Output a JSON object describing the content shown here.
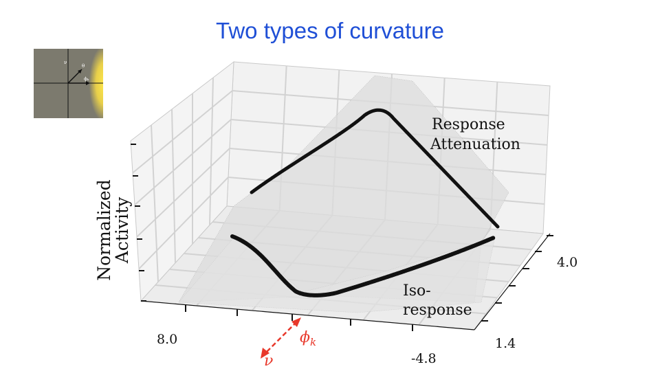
{
  "slide": {
    "title": "Two types of curvature"
  },
  "inset": {
    "label_v": "ν",
    "label_theta": "θ",
    "label_phi": "ϕₖ"
  },
  "plot": {
    "zlabel_line1": "Normalized",
    "zlabel_line2": "Activity",
    "annotation_top_line1": "Response",
    "annotation_top_line2": "Attenuation",
    "annotation_bottom_line1": "Iso-",
    "annotation_bottom_line2": "response",
    "x_ticks": [
      "8.0",
      "-4.8"
    ],
    "y_ticks": [
      "4.0",
      "1.4"
    ],
    "arrow_phi": "ϕ",
    "arrow_phi_sub": "k",
    "arrow_nu": "ν"
  },
  "colors": {
    "title": "#1f4fd6",
    "arrow": "#e8382b",
    "curve": "#000000"
  }
}
